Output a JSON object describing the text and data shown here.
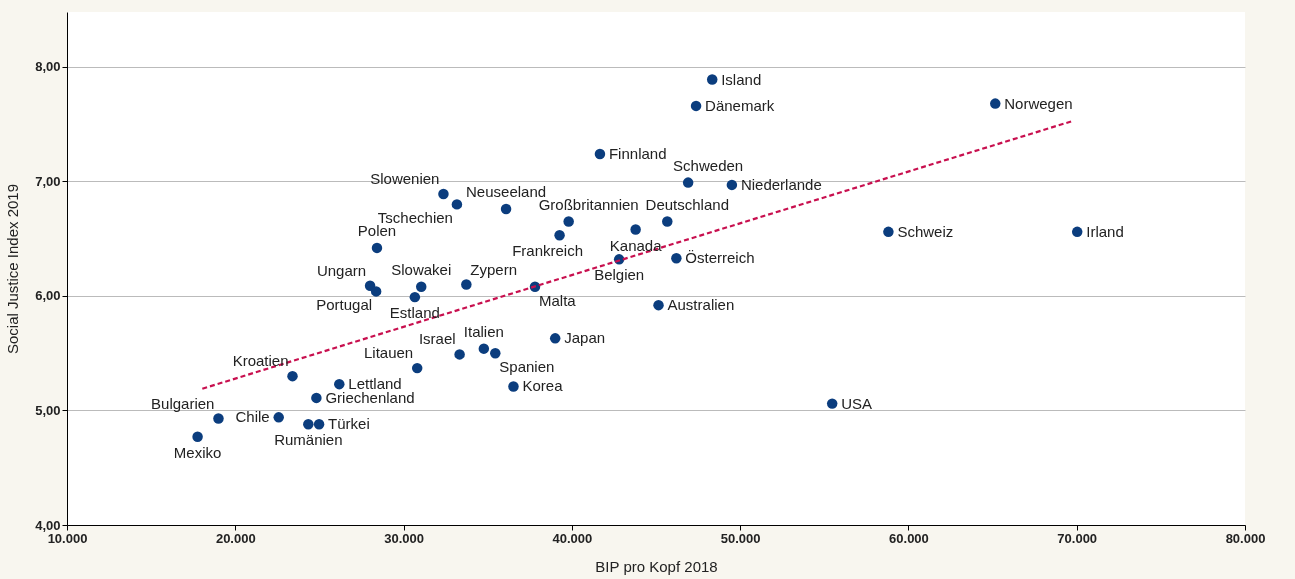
{
  "chart_data": {
    "type": "scatter",
    "xlabel": "BIP pro Kopf 2018",
    "ylabel": "Social Justice Index 2019",
    "xlim": [
      10000,
      80000
    ],
    "ylim": [
      4,
      8.48
    ],
    "xticks": [
      {
        "value": 10000,
        "label": "10.000"
      },
      {
        "value": 20000,
        "label": "20.000"
      },
      {
        "value": 30000,
        "label": "30.000"
      },
      {
        "value": 40000,
        "label": "40.000"
      },
      {
        "value": 50000,
        "label": "50.000"
      },
      {
        "value": 60000,
        "label": "60.000"
      },
      {
        "value": 70000,
        "label": "70.000"
      },
      {
        "value": 80000,
        "label": "80.000"
      }
    ],
    "yticks": [
      {
        "value": 4,
        "label": "4,00"
      },
      {
        "value": 5,
        "label": "5,00"
      },
      {
        "value": 6,
        "label": "6,00"
      },
      {
        "value": 7,
        "label": "7,00"
      },
      {
        "value": 8,
        "label": "8,00"
      }
    ],
    "grid": "y",
    "marker": "circle",
    "series": [
      {
        "color": "#0b3d7e",
        "x": [
          48340,
          47380,
          65160,
          41670,
          46910,
          49510,
          32370,
          33170,
          36090,
          39810,
          39270,
          43790,
          45670,
          42810,
          46210,
          45150,
          58810,
          70030,
          55470,
          28420,
          28010,
          28370,
          31050,
          30670,
          33730,
          37810,
          39010,
          34770,
          35450,
          33330,
          30810,
          36530,
          23400,
          26180,
          24820,
          19000,
          22580,
          24340,
          24980,
          17760
        ],
        "values": [
          7.89,
          7.66,
          7.68,
          7.24,
          6.99,
          6.97,
          6.89,
          6.8,
          6.76,
          6.65,
          6.53,
          6.58,
          6.65,
          6.32,
          6.33,
          5.92,
          6.56,
          6.56,
          5.06,
          6.42,
          6.09,
          6.04,
          6.08,
          5.99,
          6.1,
          6.08,
          5.63,
          5.54,
          5.5,
          5.49,
          5.37,
          5.21,
          5.3,
          5.23,
          5.11,
          4.93,
          4.94,
          4.88,
          4.88,
          4.77
        ]
      },
      {
        "type": "line",
        "marker": "none",
        "color": "#c8104f",
        "line_style": "dashed",
        "x": [
          18040,
          69800
        ],
        "values": [
          5.19,
          7.53
        ]
      }
    ],
    "annotations": [
      {
        "text": "Island",
        "x": 48340,
        "y": 7.89
      },
      {
        "text": "Dänemark",
        "x": 47380,
        "y": 7.66
      },
      {
        "text": "Norwegen",
        "x": 65160,
        "y": 7.68
      },
      {
        "text": "Finnland",
        "x": 41670,
        "y": 7.24
      },
      {
        "text": "Schweden",
        "x": 46910,
        "y": 6.99
      },
      {
        "text": "Niederlande",
        "x": 49510,
        "y": 6.97
      },
      {
        "text": "Slowenien",
        "x": 32370,
        "y": 6.89
      },
      {
        "text": "Tschechien",
        "x": 33170,
        "y": 6.8
      },
      {
        "text": "Neuseeland",
        "x": 36090,
        "y": 6.76
      },
      {
        "text": "Großbritannien",
        "x": 39810,
        "y": 6.65
      },
      {
        "text": "Frankreich",
        "x": 39270,
        "y": 6.53
      },
      {
        "text": "Kanada",
        "x": 43790,
        "y": 6.58
      },
      {
        "text": "Deutschland",
        "x": 45670,
        "y": 6.65
      },
      {
        "text": "Belgien",
        "x": 42810,
        "y": 6.32
      },
      {
        "text": "Österreich",
        "x": 46210,
        "y": 6.33
      },
      {
        "text": "Australien",
        "x": 45150,
        "y": 5.92
      },
      {
        "text": "Schweiz",
        "x": 58810,
        "y": 6.56
      },
      {
        "text": "Irland",
        "x": 70030,
        "y": 6.56
      },
      {
        "text": "USA",
        "x": 55470,
        "y": 5.06
      },
      {
        "text": "Polen",
        "x": 28420,
        "y": 6.42
      },
      {
        "text": "Ungarn",
        "x": 28010,
        "y": 6.09
      },
      {
        "text": "Portugal",
        "x": 28370,
        "y": 6.04
      },
      {
        "text": "Slowakei",
        "x": 31050,
        "y": 6.08
      },
      {
        "text": "Estland",
        "x": 30670,
        "y": 5.99
      },
      {
        "text": "Zypern",
        "x": 33730,
        "y": 6.1
      },
      {
        "text": "Malta",
        "x": 37810,
        "y": 6.08
      },
      {
        "text": "Japan",
        "x": 39010,
        "y": 5.63
      },
      {
        "text": "Italien",
        "x": 34770,
        "y": 5.54
      },
      {
        "text": "Spanien",
        "x": 35450,
        "y": 5.5
      },
      {
        "text": "Israel",
        "x": 33330,
        "y": 5.49
      },
      {
        "text": "Litauen",
        "x": 30810,
        "y": 5.37
      },
      {
        "text": "Korea",
        "x": 36530,
        "y": 5.21
      },
      {
        "text": "Kroatien",
        "x": 23400,
        "y": 5.3
      },
      {
        "text": "Lettland",
        "x": 26180,
        "y": 5.23
      },
      {
        "text": "Griechenland",
        "x": 24820,
        "y": 5.11
      },
      {
        "text": "Bulgarien",
        "x": 19000,
        "y": 4.93
      },
      {
        "text": "Chile",
        "x": 22580,
        "y": 4.94
      },
      {
        "text": "Rumänien",
        "x": 24340,
        "y": 4.88
      },
      {
        "text": "Türkei",
        "x": 24980,
        "y": 4.88
      },
      {
        "text": "Mexiko",
        "x": 17760,
        "y": 4.77
      }
    ]
  }
}
